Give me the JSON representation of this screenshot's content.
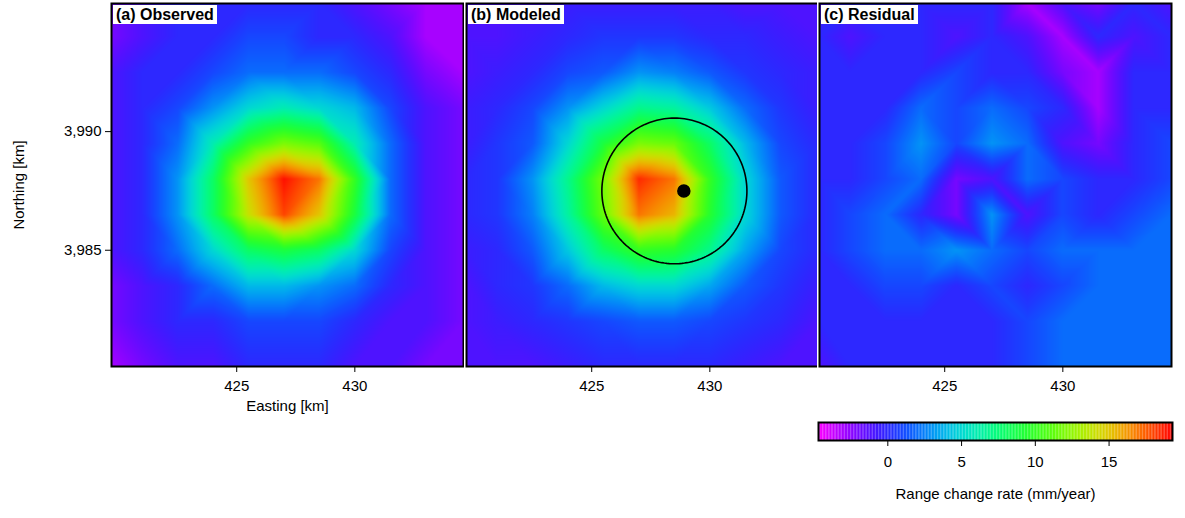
{
  "chart_data": [
    {
      "type": "heatmap",
      "title": "(a) Observed",
      "xlabel": "Easting [km]",
      "ylabel": "Northing [km]",
      "xlim": [
        419.7,
        434.6
      ],
      "ylim": [
        3980.1,
        3995.4
      ],
      "xticks": [
        425,
        430
      ],
      "yticks": [
        3985,
        3990
      ],
      "cells": {
        "x": [
          419.7,
          421,
          422.5,
          424,
          425.5,
          427,
          428.5,
          430,
          431.5,
          433,
          434.6
        ],
        "y": [
          3995.4,
          3994,
          3992.5,
          3991,
          3989.5,
          3988,
          3986.5,
          3985,
          3983.5,
          3982,
          3980.1
        ],
        "values": [
          [
            -2,
            -1,
            0,
            0,
            0,
            0,
            0,
            -1,
            -2,
            -3,
            -3
          ],
          [
            -2,
            -1,
            0,
            0,
            1,
            1,
            0,
            0,
            -1,
            -3,
            -3
          ],
          [
            -1,
            0,
            0,
            1,
            2,
            2,
            2,
            1,
            0,
            -2,
            -3
          ],
          [
            -1,
            0,
            1,
            3,
            5,
            6,
            5,
            4,
            1,
            -1,
            -2
          ],
          [
            -1,
            0,
            2,
            6,
            10,
            12,
            11,
            6,
            2,
            -1,
            -2
          ],
          [
            -1,
            0,
            3,
            8,
            15,
            19,
            17,
            10,
            2,
            -1,
            -2
          ],
          [
            -1,
            0,
            3,
            8,
            14,
            18,
            15,
            9,
            2,
            -1,
            -2
          ],
          [
            -1,
            0,
            2,
            5,
            8,
            9,
            8,
            5,
            1,
            -1,
            -2
          ],
          [
            -2,
            -1,
            0,
            2,
            4,
            4,
            3,
            2,
            0,
            -1,
            -2
          ],
          [
            -2,
            -1,
            0,
            0,
            1,
            1,
            1,
            0,
            -1,
            -1,
            -2
          ],
          [
            -3,
            -2,
            -1,
            -1,
            0,
            0,
            0,
            -1,
            -1,
            -2,
            -2
          ]
        ]
      }
    },
    {
      "type": "heatmap",
      "title": "(b) Modeled",
      "tick_labels": "x",
      "xlim": [
        419.7,
        434.6
      ],
      "ylim": [
        3980.1,
        3995.4
      ],
      "xticks": [
        425,
        430
      ],
      "circle": {
        "x": 428.5,
        "y": 3987.5,
        "radius": 3.07
      },
      "source": {
        "x": 428.9,
        "y": 3987.5,
        "marker": "circle"
      },
      "cells": {
        "x": [
          419.7,
          421,
          422.5,
          424,
          425.5,
          427,
          428.5,
          430,
          431.5,
          433,
          434.6
        ],
        "y": [
          3995.4,
          3994,
          3992.5,
          3991,
          3989.5,
          3988,
          3986.5,
          3985,
          3983.5,
          3982,
          3980.1
        ],
        "values": [
          [
            -1,
            -1,
            -1,
            -0.5,
            -0.5,
            -0.5,
            -0.5,
            -0.5,
            -1,
            -1,
            -1
          ],
          [
            -1,
            -1,
            -0.5,
            0,
            0.5,
            0.5,
            0.5,
            0,
            0,
            -0.5,
            -1
          ],
          [
            -1,
            -0.5,
            0,
            1,
            1.5,
            3,
            2.5,
            1.5,
            0.5,
            0,
            -0.5
          ],
          [
            -0.5,
            0,
            1,
            3,
            5,
            7,
            6.5,
            4.5,
            2,
            0.5,
            -0.5
          ],
          [
            -0.5,
            0.5,
            1.5,
            5,
            9,
            12,
            11.5,
            8,
            4,
            1,
            0
          ],
          [
            0,
            0.5,
            3,
            7,
            12,
            18.5,
            17,
            10,
            5,
            1.5,
            0
          ],
          [
            0,
            0.5,
            2.5,
            6.5,
            11.5,
            17,
            15.5,
            9.5,
            5,
            1.5,
            0
          ],
          [
            -0.5,
            0,
            1.5,
            4.5,
            8,
            10,
            9.5,
            7,
            3.5,
            1,
            0
          ],
          [
            -1,
            0,
            0.5,
            2,
            4,
            5,
            5,
            3.5,
            1.5,
            0.5,
            -0.5
          ],
          [
            -1,
            -0.5,
            0,
            0.5,
            1,
            1.5,
            1.5,
            1,
            0.5,
            0,
            -1
          ],
          [
            -1,
            -1,
            -1,
            -0.5,
            0,
            0,
            0,
            0,
            -0.5,
            -1,
            -1
          ]
        ]
      }
    },
    {
      "type": "heatmap",
      "title": "(c) Residual",
      "tick_labels": "x",
      "xlim": [
        419.7,
        434.6
      ],
      "ylim": [
        3980.1,
        3995.4
      ],
      "xticks": [
        425,
        430
      ],
      "cells": {
        "x": [
          419.7,
          421,
          422.5,
          424,
          425.5,
          427,
          428.5,
          430,
          431.5,
          433,
          434.6
        ],
        "y": [
          3995.4,
          3994,
          3992.5,
          3991,
          3989.5,
          3988,
          3986.5,
          3985,
          3983.5,
          3982,
          3980.1
        ],
        "values": [
          [
            -1,
            0,
            0,
            0,
            0,
            0,
            -3,
            -1,
            -2,
            0,
            -1
          ],
          [
            0,
            -1,
            0,
            0,
            -1,
            0,
            -1,
            -3,
            0,
            -1,
            0
          ],
          [
            0,
            0,
            0,
            0,
            1,
            0,
            0,
            -2,
            -3,
            0,
            0
          ],
          [
            0,
            0,
            0,
            2,
            1,
            2,
            1,
            0,
            -3,
            0,
            0
          ],
          [
            0,
            0,
            1,
            3,
            1,
            3,
            2,
            -1,
            -2,
            0,
            1
          ],
          [
            0,
            0,
            1,
            2,
            -2,
            -1,
            2,
            1,
            0,
            0,
            1
          ],
          [
            0,
            1,
            2,
            0,
            -2,
            3,
            -1,
            1,
            0,
            1,
            2
          ],
          [
            0,
            1,
            2,
            2,
            3,
            2,
            1,
            2,
            2,
            2,
            2
          ],
          [
            0,
            0,
            1,
            1,
            0,
            1,
            0,
            1,
            2,
            2,
            2
          ],
          [
            0,
            0,
            0,
            0,
            0,
            0,
            1,
            2,
            2,
            2,
            2
          ],
          [
            -1,
            0,
            0,
            0,
            0,
            0,
            1,
            2,
            2,
            2,
            2
          ]
        ]
      }
    }
  ],
  "colorbar": {
    "label": "Range change rate (mm/year)",
    "range": [
      -4.7,
      19.3
    ],
    "ticks": [
      0,
      5,
      10,
      15
    ]
  }
}
